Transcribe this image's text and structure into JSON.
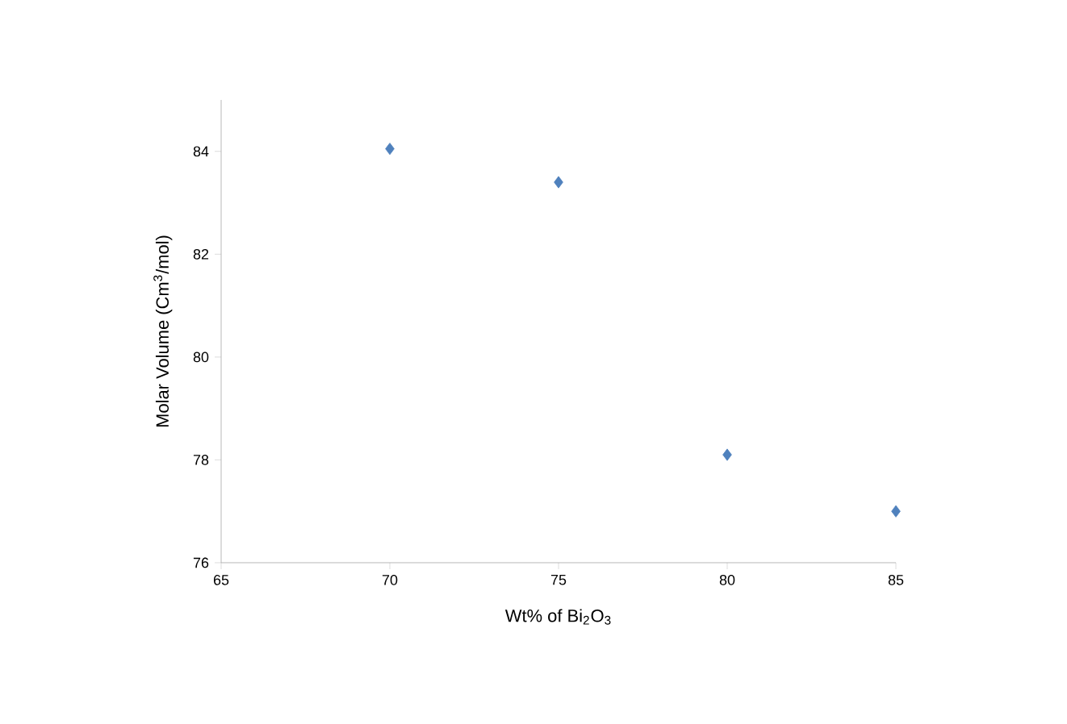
{
  "chart_data": {
    "type": "scatter",
    "xlabel": "Wt% of Bi$_{2}$O$_{3}$",
    "ylabel": "Molar Volume (Cm$^{3}$/mol)",
    "x": [
      70,
      75,
      80,
      85
    ],
    "series": [
      {
        "color": "#4f81bd",
        "values": [
          84.05,
          83.4,
          78.1,
          77.0
        ]
      }
    ],
    "xlim": [
      65,
      85
    ],
    "xticks": [
      65,
      70,
      75,
      80,
      85
    ],
    "ylim": [
      76,
      85
    ],
    "yticks": [
      76,
      78,
      80,
      82,
      84
    ],
    "marker": "diamond",
    "grid": false
  }
}
